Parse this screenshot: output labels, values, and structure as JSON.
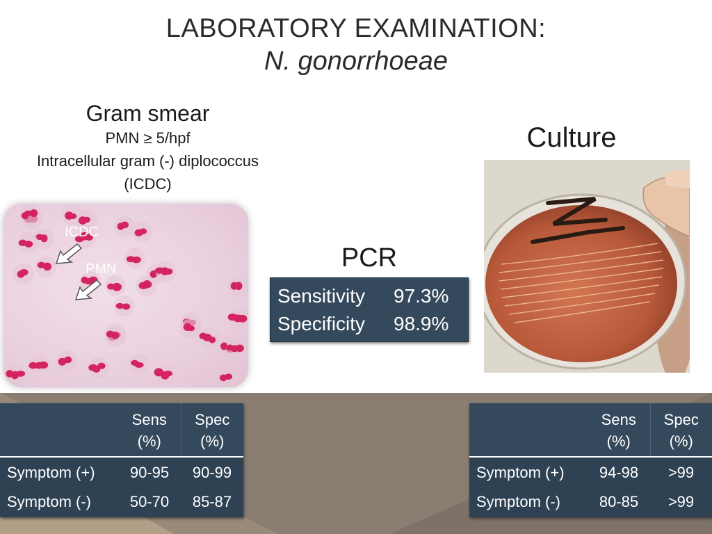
{
  "title": {
    "line1": "LABORATORY EXAMINATION:",
    "line2": "N. gonorrhoeae"
  },
  "gram_smear": {
    "heading": "Gram smear",
    "line1": "PMN ≥ 5/hpf",
    "line2": "Intracellular gram (-) diplococcus",
    "line3": "(ICDC)",
    "image_labels": {
      "icdc": "ICDC",
      "pmn": "PMN"
    }
  },
  "pcr": {
    "heading": "PCR",
    "rows": [
      {
        "label": "Sensitivity",
        "value": "97.3%"
      },
      {
        "label": "Specificity",
        "value": "98.9%"
      }
    ]
  },
  "culture": {
    "heading": "Culture"
  },
  "table_gram": {
    "headers": [
      "",
      "Sens\n(%)",
      "Spec\n(%)"
    ],
    "header_sens": [
      "Sens",
      "(%)"
    ],
    "header_spec": [
      "Spec",
      "(%)"
    ],
    "rows": [
      {
        "label": "Symptom (+)",
        "sens": "90-95",
        "spec": "90-99"
      },
      {
        "label": "Symptom (-)",
        "sens": "50-70",
        "spec": "85-87"
      }
    ]
  },
  "table_culture": {
    "header_sens": [
      "Sens",
      "(%)"
    ],
    "header_spec": [
      "Spec",
      "(%)"
    ],
    "rows": [
      {
        "label": "Symptom (+)",
        "sens": "94-98",
        "spec": ">99"
      },
      {
        "label": "Symptom (-)",
        "sens": "80-85",
        "spec": ">99"
      }
    ]
  },
  "colors": {
    "table_header": "#35495c",
    "table_body": "#2f4254",
    "band": "#8a7d72",
    "stain": "#d4245f"
  }
}
